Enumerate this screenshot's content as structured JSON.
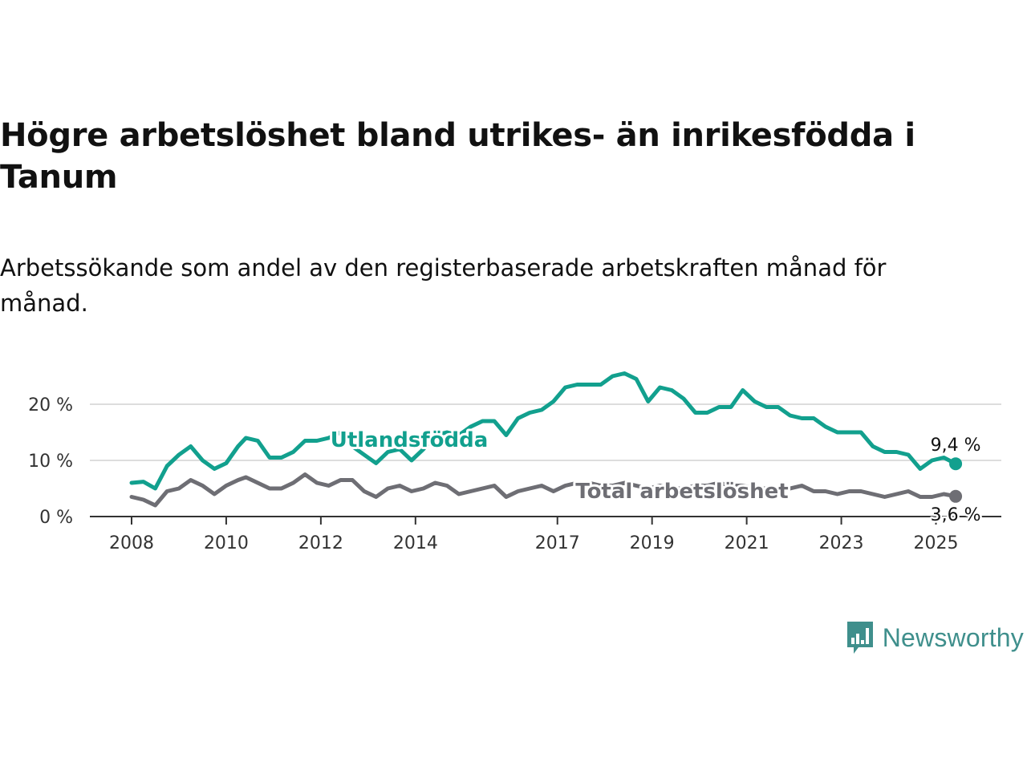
{
  "title": "Högre arbetslöshet bland utrikes- än inrikesfödda i Tanum",
  "subtitle": "Arbetssökande som andel av den registerbaserade arbetskraften månad för månad.",
  "logo": {
    "text": "Newsworthy",
    "icon": "newsworthy-logo-icon",
    "color": "#3f8f8c"
  },
  "chart_data": {
    "type": "line",
    "x_ticks": [
      "2008",
      "2010",
      "2012",
      "2014",
      "2017",
      "2019",
      "2021",
      "2023",
      "2025"
    ],
    "y_ticks": [
      "0 %",
      "10 %",
      "20 %"
    ],
    "ylim": [
      0,
      28
    ],
    "xlim": [
      "2007-11",
      "2025-12"
    ],
    "grid": true,
    "series": [
      {
        "name": "Utlandsfödda",
        "color": "#12a08e",
        "end_label": "9,4 %",
        "points": [
          [
            "2008-01",
            6.0
          ],
          [
            "2008-04",
            6.2
          ],
          [
            "2008-07",
            5.0
          ],
          [
            "2008-10",
            9.0
          ],
          [
            "2009-01",
            11.0
          ],
          [
            "2009-04",
            12.5
          ],
          [
            "2009-07",
            10.0
          ],
          [
            "2009-10",
            8.5
          ],
          [
            "2010-01",
            9.5
          ],
          [
            "2010-04",
            12.5
          ],
          [
            "2010-06",
            14.0
          ],
          [
            "2010-09",
            13.5
          ],
          [
            "2010-12",
            10.5
          ],
          [
            "2011-03",
            10.5
          ],
          [
            "2011-06",
            11.5
          ],
          [
            "2011-09",
            13.5
          ],
          [
            "2011-12",
            13.5
          ],
          [
            "2012-03",
            14.0
          ],
          [
            "2012-06",
            15.0
          ],
          [
            "2012-09",
            12.5
          ],
          [
            "2012-12",
            11.0
          ],
          [
            "2013-03",
            9.5
          ],
          [
            "2013-06",
            11.5
          ],
          [
            "2013-09",
            12.0
          ],
          [
            "2013-12",
            10.0
          ],
          [
            "2014-03",
            12.0
          ],
          [
            "2014-06",
            14.5
          ],
          [
            "2014-09",
            15.0
          ],
          [
            "2014-12",
            14.5
          ],
          [
            "2015-03",
            16.0
          ],
          [
            "2015-06",
            17.0
          ],
          [
            "2015-09",
            17.0
          ],
          [
            "2015-12",
            14.5
          ],
          [
            "2016-03",
            17.5
          ],
          [
            "2016-06",
            18.5
          ],
          [
            "2016-09",
            19.0
          ],
          [
            "2016-12",
            20.5
          ],
          [
            "2017-03",
            23.0
          ],
          [
            "2017-06",
            23.5
          ],
          [
            "2017-09",
            23.5
          ],
          [
            "2017-12",
            23.5
          ],
          [
            "2018-03",
            25.0
          ],
          [
            "2018-06",
            25.5
          ],
          [
            "2018-09",
            24.5
          ],
          [
            "2018-12",
            20.5
          ],
          [
            "2019-03",
            23.0
          ],
          [
            "2019-06",
            22.5
          ],
          [
            "2019-09",
            21.0
          ],
          [
            "2019-12",
            18.5
          ],
          [
            "2020-03",
            18.5
          ],
          [
            "2020-06",
            19.5
          ],
          [
            "2020-09",
            19.5
          ],
          [
            "2020-12",
            22.5
          ],
          [
            "2021-03",
            20.5
          ],
          [
            "2021-06",
            19.5
          ],
          [
            "2021-09",
            19.5
          ],
          [
            "2021-12",
            18.0
          ],
          [
            "2022-03",
            17.5
          ],
          [
            "2022-06",
            17.5
          ],
          [
            "2022-09",
            16.0
          ],
          [
            "2022-12",
            15.0
          ],
          [
            "2023-03",
            15.0
          ],
          [
            "2023-06",
            15.0
          ],
          [
            "2023-09",
            12.5
          ],
          [
            "2023-12",
            11.5
          ],
          [
            "2024-03",
            11.5
          ],
          [
            "2024-06",
            11.0
          ],
          [
            "2024-09",
            8.5
          ],
          [
            "2024-12",
            10.0
          ],
          [
            "2025-03",
            10.5
          ],
          [
            "2025-06",
            9.4
          ]
        ]
      },
      {
        "name": "Total arbetslöshet",
        "color": "#6e6e74",
        "end_label": "3,6 %",
        "points": [
          [
            "2008-01",
            3.5
          ],
          [
            "2008-04",
            3.0
          ],
          [
            "2008-07",
            2.0
          ],
          [
            "2008-10",
            4.5
          ],
          [
            "2009-01",
            5.0
          ],
          [
            "2009-04",
            6.5
          ],
          [
            "2009-07",
            5.5
          ],
          [
            "2009-10",
            4.0
          ],
          [
            "2010-01",
            5.5
          ],
          [
            "2010-04",
            6.5
          ],
          [
            "2010-06",
            7.0
          ],
          [
            "2010-09",
            6.0
          ],
          [
            "2010-12",
            5.0
          ],
          [
            "2011-03",
            5.0
          ],
          [
            "2011-06",
            6.0
          ],
          [
            "2011-09",
            7.5
          ],
          [
            "2011-12",
            6.0
          ],
          [
            "2012-03",
            5.5
          ],
          [
            "2012-06",
            6.5
          ],
          [
            "2012-09",
            6.5
          ],
          [
            "2012-12",
            4.5
          ],
          [
            "2013-03",
            3.5
          ],
          [
            "2013-06",
            5.0
          ],
          [
            "2013-09",
            5.5
          ],
          [
            "2013-12",
            4.5
          ],
          [
            "2014-03",
            5.0
          ],
          [
            "2014-06",
            6.0
          ],
          [
            "2014-09",
            5.5
          ],
          [
            "2014-12",
            4.0
          ],
          [
            "2015-03",
            4.5
          ],
          [
            "2015-06",
            5.0
          ],
          [
            "2015-09",
            5.5
          ],
          [
            "2015-12",
            3.5
          ],
          [
            "2016-03",
            4.5
          ],
          [
            "2016-06",
            5.0
          ],
          [
            "2016-09",
            5.5
          ],
          [
            "2016-12",
            4.5
          ],
          [
            "2017-03",
            5.5
          ],
          [
            "2017-06",
            6.0
          ],
          [
            "2017-09",
            6.0
          ],
          [
            "2017-12",
            5.5
          ],
          [
            "2018-03",
            5.5
          ],
          [
            "2018-06",
            6.0
          ],
          [
            "2018-09",
            5.5
          ],
          [
            "2018-12",
            5.0
          ],
          [
            "2019-03",
            5.5
          ],
          [
            "2019-06",
            5.0
          ],
          [
            "2019-09",
            5.0
          ],
          [
            "2019-12",
            5.5
          ],
          [
            "2020-03",
            5.5
          ],
          [
            "2020-06",
            6.0
          ],
          [
            "2020-09",
            5.5
          ],
          [
            "2020-12",
            5.5
          ],
          [
            "2021-03",
            5.0
          ],
          [
            "2021-06",
            5.0
          ],
          [
            "2021-09",
            5.0
          ],
          [
            "2021-12",
            5.0
          ],
          [
            "2022-03",
            5.5
          ],
          [
            "2022-06",
            4.5
          ],
          [
            "2022-09",
            4.5
          ],
          [
            "2022-12",
            4.0
          ],
          [
            "2023-03",
            4.5
          ],
          [
            "2023-06",
            4.5
          ],
          [
            "2023-09",
            4.0
          ],
          [
            "2023-12",
            3.5
          ],
          [
            "2024-03",
            4.0
          ],
          [
            "2024-06",
            4.5
          ],
          [
            "2024-09",
            3.5
          ],
          [
            "2024-12",
            3.5
          ],
          [
            "2025-03",
            4.0
          ],
          [
            "2025-06",
            3.6
          ]
        ]
      }
    ]
  }
}
